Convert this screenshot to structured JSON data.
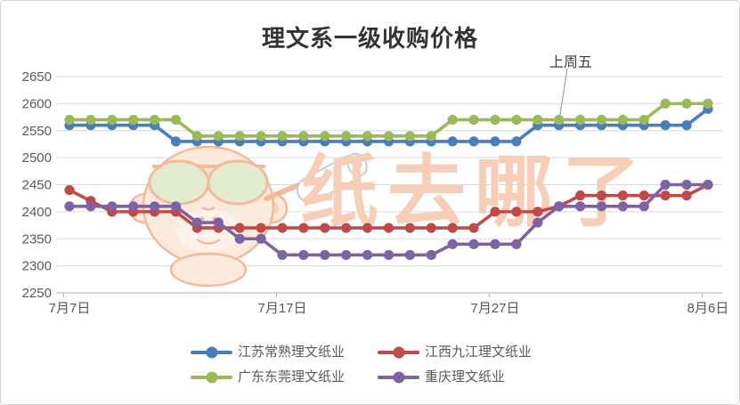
{
  "title": "理文系一级收购价格",
  "annotation": {
    "text": "上周五",
    "points_to": "7月30日"
  },
  "watermark": {
    "text": "纸去哪了"
  },
  "colors": {
    "grid": "#d9d9d9",
    "axis_line": "#bfbfbf",
    "axis_text": "#595959",
    "title_text": "#333333",
    "annotation_leader": "#a0a0a0",
    "watermark_text": "#f7cdb5",
    "watermark_outline": "#f3b694",
    "watermark_fill": "#fce9dc",
    "watermark_lens": "#e2eccf"
  },
  "chart_data": {
    "type": "line",
    "title": "理文系一级收购价格",
    "ylim": [
      2250,
      2650
    ],
    "y_step": 50,
    "grid": true,
    "legend_position": "bottom",
    "x_tick_labels": [
      "7月7日",
      "7月17日",
      "7月27日",
      "8月6日"
    ],
    "categories": [
      "7月7日",
      "7月8日",
      "7月9日",
      "7月10日",
      "7月11日",
      "7月12日",
      "7月13日",
      "7月14日",
      "7月15日",
      "7月16日",
      "7月17日",
      "7月18日",
      "7月19日",
      "7月20日",
      "7月21日",
      "7月22日",
      "7月23日",
      "7月24日",
      "7月25日",
      "7月26日",
      "7月27日",
      "7月28日",
      "7月29日",
      "7月30日",
      "7月31日",
      "8月1日",
      "8月2日",
      "8月3日",
      "8月4日",
      "8月5日",
      "8月6日"
    ],
    "series": [
      {
        "name": "江苏常熟理文纸业",
        "color": "#4a7ebb",
        "values": [
          2560,
          2560,
          2560,
          2560,
          2560,
          2530,
          2530,
          2530,
          2530,
          2530,
          2530,
          2530,
          2530,
          2530,
          2530,
          2530,
          2530,
          2530,
          2530,
          2530,
          2530,
          2530,
          2560,
          2560,
          2560,
          2560,
          2560,
          2560,
          2560,
          2560,
          2590
        ]
      },
      {
        "name": "江西九江理文纸业",
        "color": "#be4b48",
        "values": [
          2440,
          2420,
          2400,
          2400,
          2400,
          2400,
          2370,
          2370,
          2370,
          2370,
          2370,
          2370,
          2370,
          2370,
          2370,
          2370,
          2370,
          2370,
          2370,
          2370,
          2400,
          2400,
          2400,
          2410,
          2430,
          2430,
          2430,
          2430,
          2430,
          2430,
          2450
        ]
      },
      {
        "name": "广东东莞理文纸业",
        "color": "#9aba58",
        "values": [
          2570,
          2570,
          2570,
          2570,
          2570,
          2570,
          2540,
          2540,
          2540,
          2540,
          2540,
          2540,
          2540,
          2540,
          2540,
          2540,
          2540,
          2540,
          2570,
          2570,
          2570,
          2570,
          2570,
          2570,
          2570,
          2570,
          2570,
          2570,
          2600,
          2600,
          2600
        ]
      },
      {
        "name": "重庆理文纸业",
        "color": "#7e62a1",
        "values": [
          2410,
          2410,
          2410,
          2410,
          2410,
          2410,
          2380,
          2380,
          2350,
          2350,
          2320,
          2320,
          2320,
          2320,
          2320,
          2320,
          2320,
          2320,
          2340,
          2340,
          2340,
          2340,
          2380,
          2410,
          2410,
          2410,
          2410,
          2410,
          2450,
          2450,
          2450
        ]
      }
    ],
    "annotation_target_index": 23
  }
}
